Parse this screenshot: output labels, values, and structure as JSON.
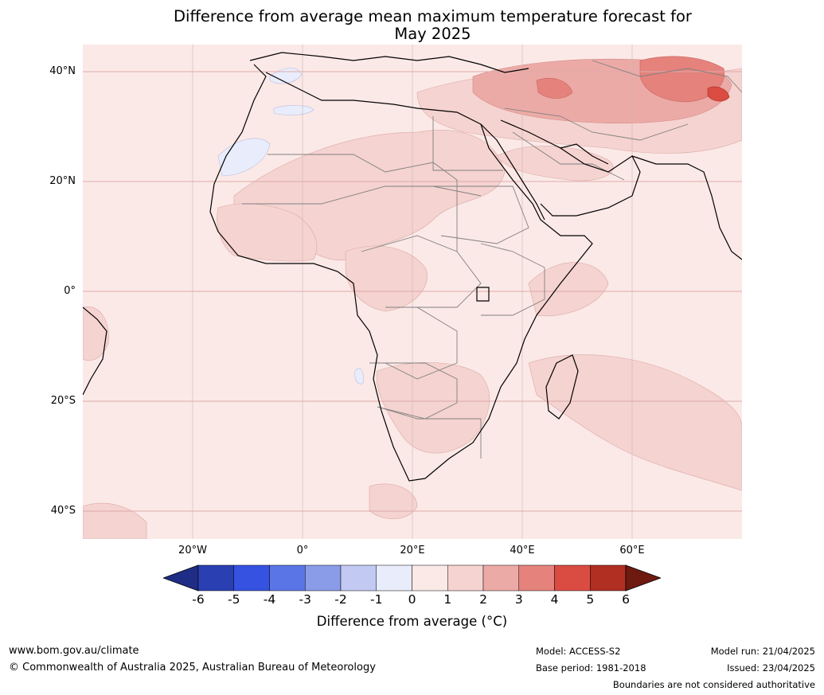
{
  "title": {
    "line1": "Difference from average mean maximum temperature forecast for",
    "line2": "May 2025"
  },
  "map": {
    "region": "Africa, Middle East and western Asia",
    "lat_labels": [
      "40°N",
      "20°N",
      "0°",
      "20°S",
      "40°S"
    ],
    "lon_labels": [
      "20°W",
      "0°",
      "20°E",
      "40°E",
      "60°E"
    ],
    "base_fill": "#fbe9e7",
    "coastline_color": "#000000",
    "border_color": "#808080",
    "gridline_color": "#dcaaaa"
  },
  "colorbar": {
    "ticks": [
      "-6",
      "-5",
      "-4",
      "-3",
      "-2",
      "-1",
      "0",
      "1",
      "2",
      "3",
      "4",
      "5",
      "6"
    ],
    "colors": [
      "#1f2d86",
      "#2a3fb2",
      "#3552e0",
      "#5a75e6",
      "#8a9ce8",
      "#c2c9f2",
      "#e9ecfb",
      "#fbe9e7",
      "#f5d3d0",
      "#ecaaa6",
      "#e5827c",
      "#da4c42",
      "#b02e22",
      "#6e1a10"
    ],
    "label": "Difference from average (°C)"
  },
  "footer": {
    "website": "www.bom.gov.au/climate",
    "copyright": "© Commonwealth of Australia 2025, Australian Bureau of Meteorology",
    "model": "Model: ACCESS-S2",
    "base_period": "Base period: 1981-2018",
    "model_run": "Model run: 21/04/2025",
    "issued": "Issued: 23/04/2025",
    "disclaimer": "Boundaries are not considered authoritative"
  }
}
